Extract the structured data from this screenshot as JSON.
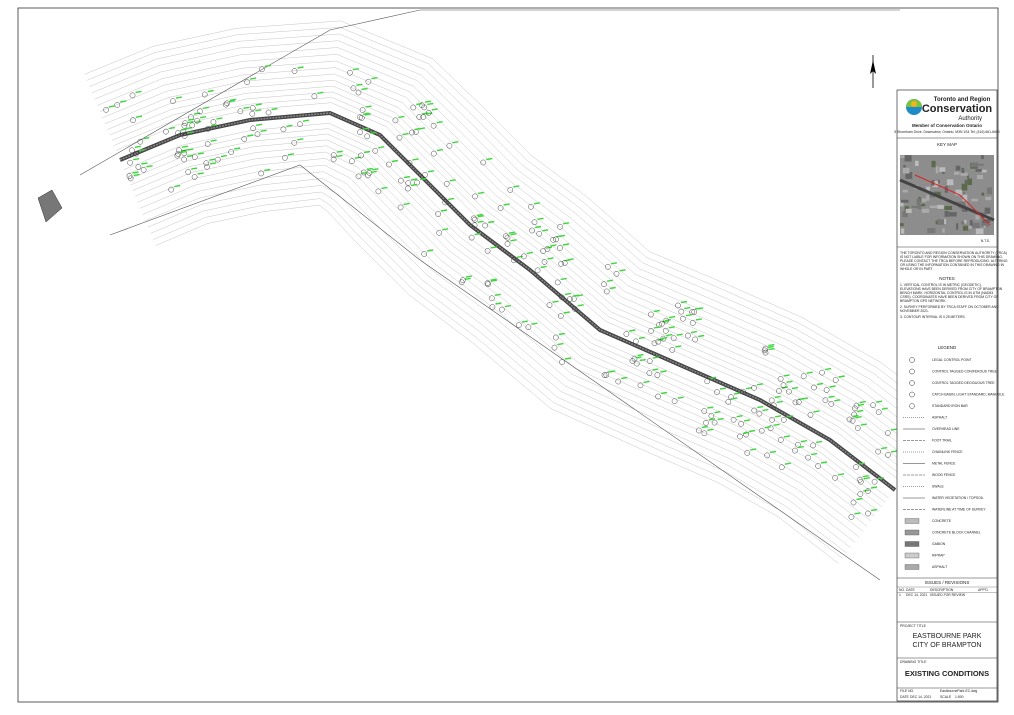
{
  "header": {
    "org_line1": "Toronto and Region",
    "org_line2": "Conservation",
    "org_line3": "Authority",
    "member": "Member of Conservation Ontario",
    "address": "5 Shoreham Drive, Downsview, Ontario, M3N 1S4  Tel: (416) 661-6600"
  },
  "key_map": {
    "title": "KEY MAP",
    "scale": "N.T.S."
  },
  "disclaimer": "THE TORONTO AND REGION CONSERVATION AUTHORITY (TRCA) IS NOT LIABLE FOR INFORMATION SHOWN ON THIS DRAWING. PLEASE CONTACT THE TRCA BEFORE REPRODUCING, ALTERING OR USING THE INFORMATION CONTAINED IN THIS DRAWING IN WHOLE OR IN PART.",
  "notes": {
    "title": "NOTES",
    "items": [
      "1. VERTICAL CONTROL IS IN METRIC (GEODETIC). ELEVATIONS HAVE BEEN DERIVED FROM CITY OF BRAMPTON BENCH MARK. HORIZONTAL CONTROL IS IN UTM (NAD83 CSRS). COORDINATES HAVE BEEN DERIVED FROM CITY OF BRAMPTON GPS NETWORK.",
      "2. SURVEY PERFORMED BY TRCA STAFF ON OCTOBER AND NOVEMBER 2021.",
      "3. CONTOUR INTERVAL IS 0.25 METERS."
    ]
  },
  "legend": {
    "title": "LEGEND",
    "items": [
      "LEGAL CONTROL POINT",
      "CONTROL TAGGED CONIFEROUS TREE",
      "CONTROL TAGGED DECIDUOUS TREE",
      "CATCH BASIN, LIGHT STANDARD, MANHOLE",
      "STANDARD IRON BAR",
      "ASPHALT",
      "OVERHEAD LINE",
      "FOOT TRAIL",
      "CHAINLINK FENCE",
      "METAL FENCE",
      "WOOD FENCE",
      "SWALE",
      "WATER VEGETATION / TOPSOIL",
      "WATERLINE AT TIME OF SURVEY",
      "CONCRETE",
      "CONCRETE BLOCK CHANNEL",
      "GABION",
      "RIPRAP",
      "ASPHALT"
    ]
  },
  "revisions": {
    "title": "ISSUES / REVISIONS",
    "columns": [
      "NO.",
      "DATE",
      "DESCRIPTION",
      "APP'D."
    ],
    "rows": [
      [
        "1",
        "DEC 14, 2021",
        "ISSUED FOR REVIEW",
        ""
      ]
    ]
  },
  "project": {
    "label": "PROJECT TITLE",
    "line1": "EASTBOURNE PARK",
    "line2": "CITY OF BRAMPTON"
  },
  "drawing": {
    "label": "DRAWING TITLE",
    "title": "EXISTING CONDITIONS"
  },
  "footer": {
    "date_label": "DATE",
    "date": "DEC 14, 2021",
    "scale_label": "SCALE",
    "scale": "1:500",
    "file_label": "FILE NO.",
    "file": "EastbournePark-EC.dwg"
  }
}
